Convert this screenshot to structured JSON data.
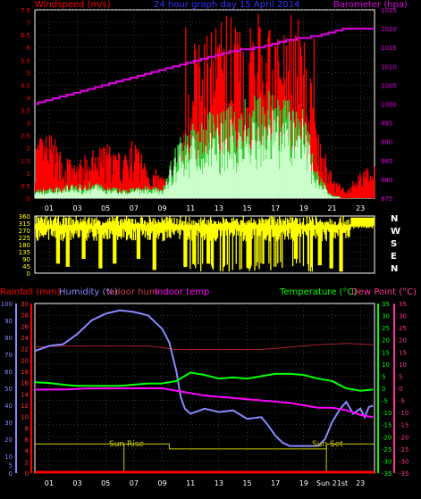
{
  "header": {
    "left_label": "Windspeed (m/s)",
    "title": "24 hour graph day   15 April 2014",
    "right_label": "Barometer (hpa)"
  },
  "colors": {
    "bg": "#000000",
    "grid": "#555555",
    "wind_avg": "#ff0000",
    "wind_gust": "#33cc33",
    "wind_low": "#ccffcc",
    "barometer": "#e000e0",
    "direction": "#ffff00",
    "rain_axis": "#ff0000",
    "humidity": "#8888ff",
    "indoor_hum": "#aa2233",
    "indoor_temp": "#ff00ff",
    "temperature": "#00ff00",
    "dew_point": "#ff3399",
    "sun": "#cccc00",
    "hour_axis": "#ffffff"
  },
  "chart_data": [
    {
      "id": "wind",
      "type": "bar",
      "title": "24 hour graph day   15 April 2014",
      "ylabel_left": "Windspeed (m/s)",
      "ylabel_right": "Barometer (hpa)",
      "ylim_left": [
        0,
        7.5
      ],
      "ylim_right": [
        975,
        1025
      ],
      "yticks_left": [
        "0",
        "0.5",
        "1",
        "1.5",
        "2",
        "2.5",
        "3",
        "3.5",
        "4",
        "4.5",
        "5",
        "5.5",
        "6",
        "6.5",
        "7",
        "7.5"
      ],
      "yticks_right": [
        "975",
        "980",
        "985",
        "990",
        "995",
        "1000",
        "1005",
        "1010",
        "1015",
        "1020",
        "1025"
      ],
      "xticks": [
        "01",
        "03",
        "05",
        "07",
        "09",
        "11",
        "13",
        "15",
        "17",
        "19",
        "21",
        "23"
      ],
      "xtick_hours": [
        1,
        3,
        5,
        7,
        9,
        11,
        13,
        15,
        17,
        19,
        21,
        23
      ],
      "xlim": [
        0,
        24
      ],
      "series": [
        {
          "name": "wind_avg_profile",
          "hours": [
            0,
            1,
            2,
            3,
            4,
            5,
            6,
            7,
            8,
            9,
            10,
            11,
            12,
            13,
            14,
            15,
            16,
            17,
            18,
            19,
            20,
            21,
            22,
            23,
            24
          ],
          "values": [
            1.6,
            1.8,
            1.2,
            1.0,
            1.3,
            1.5,
            1.2,
            1.6,
            1.0,
            0.6,
            0.6,
            4.0,
            4.3,
            4.6,
            4.8,
            4.6,
            4.4,
            4.4,
            4.2,
            4.2,
            1.8,
            0.6,
            0.2,
            0.8,
            0.9
          ]
        },
        {
          "name": "gust_profile",
          "hours": [
            0,
            2,
            4,
            6,
            8,
            9,
            10,
            11,
            12,
            13,
            14,
            15,
            16,
            17,
            18,
            19,
            20,
            21,
            22,
            24
          ],
          "values": [
            0.3,
            0.4,
            0.5,
            0.3,
            0.4,
            0.3,
            1.8,
            2.4,
            2.6,
            2.9,
            2.9,
            3.1,
            3.4,
            3.5,
            3.3,
            2.7,
            0.8,
            0.1,
            0.0,
            0.0
          ]
        },
        {
          "name": "barometer",
          "hours": [
            0,
            2,
            4,
            6,
            8,
            10,
            12,
            14,
            16,
            18,
            20,
            21,
            22,
            23,
            24
          ],
          "values": [
            1000,
            1002,
            1004,
            1006,
            1008,
            1010,
            1012,
            1014,
            1015,
            1017,
            1018,
            1019,
            1020,
            1020,
            1020
          ]
        }
      ]
    },
    {
      "id": "direction",
      "type": "bar",
      "ylim": [
        0,
        360
      ],
      "yticks_left": [
        "0",
        "45",
        "90",
        "135",
        "180",
        "225",
        "270",
        "315",
        "360"
      ],
      "compass": [
        "N",
        "W",
        "S",
        "E",
        "N"
      ],
      "xlim": [
        0,
        24
      ],
      "series": [
        {
          "name": "direction_main",
          "hours": [
            0,
            24
          ],
          "values": [
            330,
            330
          ]
        },
        {
          "name": "direction_dips",
          "hours": [
            1.6,
            2.3,
            3.4,
            4.6,
            5.6,
            7.3,
            8.4,
            10.6,
            12.2,
            15.1,
            18.4,
            19.5,
            20.1,
            20.9,
            21.6,
            22.4
          ],
          "values": [
            60,
            40,
            90,
            30,
            60,
            90,
            20,
            40,
            60,
            30,
            90,
            10,
            50,
            30,
            10,
            200
          ]
        }
      ]
    },
    {
      "id": "temp",
      "type": "line",
      "labels": {
        "rainfall": "Rainfall (mm)",
        "humidity": "Humidity (%)",
        "indoor_hum": "Indoor hum",
        "indoor_temp": "Indoor temp",
        "temperature": "Temperature (°C)",
        "dew_point": "Dew Point (°C)"
      },
      "humidity_ticks": [
        "0",
        "5",
        "10",
        "20",
        "30",
        "40",
        "50",
        "60",
        "70",
        "80",
        "90",
        "100"
      ],
      "rain_ticks": [
        "0",
        "2",
        "4",
        "6",
        "8",
        "10",
        "12",
        "14",
        "16",
        "18",
        "20",
        "22",
        "24",
        "26",
        "28",
        "30"
      ],
      "temp_ticks": [
        "-35",
        "-30",
        "-25",
        "-20",
        "-15",
        "-10",
        "-5",
        "0",
        "5",
        "10",
        "15",
        "20",
        "25",
        "30",
        "35"
      ],
      "dew_ticks": [
        "-35",
        "-30",
        "-25",
        "-20",
        "-15",
        "-10",
        "-5",
        "0",
        "5",
        "10",
        "15",
        "20",
        "25",
        "30",
        "35"
      ],
      "xticks": [
        "01",
        "03",
        "05",
        "07",
        "09",
        "11",
        "13",
        "15",
        "17",
        "19",
        "Sun 21st",
        "23"
      ],
      "xtick_hours": [
        1,
        3,
        5,
        7,
        9,
        11,
        13,
        15,
        17,
        19,
        21,
        23
      ],
      "xlim": [
        0,
        24
      ],
      "temp_ylim": [
        -35,
        35
      ],
      "humidity_ylim": [
        0,
        100
      ],
      "sun_rise_label": "Sun Rise",
      "sun_set_label": "Sun Set",
      "sun_rise_hour": 6.3,
      "sun_set_hour": 20.6,
      "series": [
        {
          "name": "humidity",
          "hours": [
            0,
            1,
            2,
            3,
            4,
            5,
            6,
            7,
            8,
            9,
            9.5,
            10,
            10.3,
            10.6,
            11,
            12,
            13,
            14,
            15,
            16,
            16.5,
            17,
            17.5,
            18,
            19,
            20,
            20.5,
            21,
            21.5,
            22,
            22.5,
            23,
            23.3,
            23.6,
            24
          ],
          "values": [
            72,
            75,
            76,
            82,
            90,
            94,
            96,
            95,
            93,
            85,
            77,
            60,
            45,
            38,
            35,
            38,
            36,
            37,
            32,
            33,
            28,
            22,
            18,
            16,
            16,
            16,
            20,
            30,
            37,
            42,
            35,
            38,
            33,
            39,
            40
          ]
        },
        {
          "name": "temperature",
          "hours": [
            0,
            1,
            2,
            3,
            4,
            5,
            6,
            7,
            8,
            9,
            10,
            11,
            12,
            13,
            14,
            15,
            16,
            17,
            18,
            19,
            20,
            21,
            22,
            23,
            24
          ],
          "values": [
            2.5,
            2.2,
            1.5,
            1.0,
            1.0,
            1.0,
            1.0,
            1.5,
            2.0,
            2.0,
            3.0,
            6.5,
            5.5,
            4.0,
            4.5,
            4.0,
            5.0,
            6.0,
            6.0,
            5.5,
            4.0,
            3.0,
            0.0,
            -1.0,
            -0.5
          ]
        },
        {
          "name": "dew_point",
          "hours": [
            0,
            2,
            4,
            6,
            8,
            9,
            10,
            11,
            12,
            13,
            14,
            15,
            16,
            17,
            18,
            19,
            20,
            21,
            22,
            23,
            24
          ],
          "values": [
            -0.5,
            -0.5,
            0.0,
            0.0,
            0.0,
            0.0,
            -1.0,
            -2.0,
            -3.0,
            -3.5,
            -4.0,
            -4.5,
            -5.0,
            -5.5,
            -6.0,
            -7.0,
            -8.0,
            -8.0,
            -9.0,
            -11.0,
            -12.0
          ]
        },
        {
          "name": "indoor_temp",
          "hours": [
            0,
            2,
            4,
            6,
            8,
            10,
            12,
            14,
            16,
            18,
            20,
            22,
            24
          ],
          "values": [
            17,
            17.5,
            17.5,
            17.5,
            17.5,
            16,
            16,
            16,
            16,
            17,
            18,
            18.5,
            18
          ]
        },
        {
          "name": "rain",
          "hours": [
            0,
            24
          ],
          "values": [
            0,
            0
          ]
        }
      ]
    }
  ]
}
